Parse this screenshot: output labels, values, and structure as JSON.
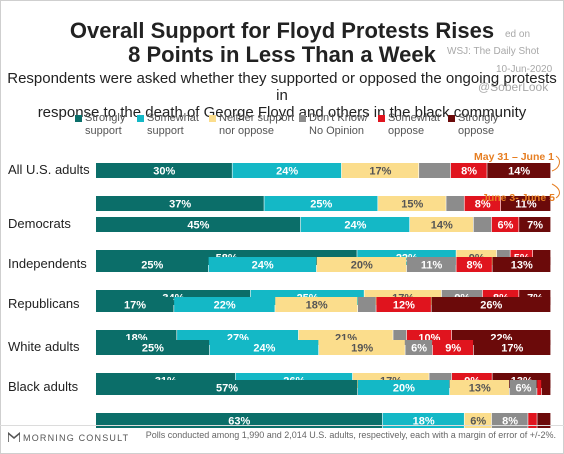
{
  "chart_data": {
    "type": "bar",
    "stacked": "horizontal-100",
    "title": "Overall Support for Floyd Protests Rises 8 Points in Less Than a Week",
    "title_lines": [
      "Overall Support for Floyd Protests Rises",
      "8 Points in Less Than a Week"
    ],
    "subtitle": "Respondents were asked whether they supported or opposed the ongoing protests in response to the death of George Floyd and others in the black community",
    "subtitle_lines": [
      "Respondents were asked whether they supported or opposed the ongoing protests in",
      "response to the death of George Floyd and others in the black community"
    ],
    "legend_position": "top",
    "legend": [
      {
        "line1": "Strongly",
        "line2": "support",
        "color": "#0b6e69"
      },
      {
        "line1": "Somewhat",
        "line2": "support",
        "color": "#14b8c6"
      },
      {
        "line1": "Neither support",
        "line2": "nor oppose",
        "color": "#fbdd8c"
      },
      {
        "line1": "Don't Know/",
        "line2": "No Opinion",
        "color": "#8c8c8c"
      },
      {
        "line1": "Somewhat",
        "line2": "oppose",
        "color": "#e0141e"
      },
      {
        "line1": "Strongly",
        "line2": "oppose",
        "color": "#6b0a0a"
      }
    ],
    "annotations": {
      "first": "May 31 – June 1",
      "second": "June 3- June 5"
    },
    "groups": [
      {
        "name": "All U.S. adults",
        "rows": [
          {
            "values": [
              30,
              24,
              17,
              7,
              8,
              14
            ],
            "labels": [
              "30%",
              "24%",
              "17%",
              "",
              "8%",
              "14%"
            ]
          },
          {
            "values": [
              37,
              25,
              15,
              4,
              8,
              11
            ],
            "labels": [
              "37%",
              "25%",
              "15%",
              "",
              "8%",
              "11%"
            ]
          }
        ]
      },
      {
        "name": "Democrats",
        "rows": [
          {
            "values": [
              45,
              24,
              14,
              4,
              6,
              7
            ],
            "labels": [
              "45%",
              "24%",
              "14%",
              "",
              "6%",
              "7%"
            ]
          },
          {
            "values": [
              58,
              22,
              9,
              3,
              5,
              4
            ],
            "labels": [
              "58%",
              "22%",
              "9%",
              "",
              "5%",
              ""
            ]
          }
        ]
      },
      {
        "name": "Independents",
        "rows": [
          {
            "values": [
              25,
              24,
              20,
              11,
              8,
              13
            ],
            "labels": [
              "25%",
              "24%",
              "20%",
              "11%",
              "8%",
              "13%"
            ]
          },
          {
            "values": [
              34,
              25,
              17,
              9,
              8,
              7
            ],
            "labels": [
              "34%",
              "25%",
              "17%",
              "9%",
              "8%",
              "7%"
            ]
          }
        ]
      },
      {
        "name": "Republicans",
        "rows": [
          {
            "values": [
              17,
              22,
              18,
              4,
              12,
              26
            ],
            "labels": [
              "17%",
              "22%",
              "18%",
              "",
              "12%",
              "26%"
            ]
          },
          {
            "values": [
              18,
              27,
              21,
              3,
              10,
              22
            ],
            "labels": [
              "18%",
              "27%",
              "21%",
              "",
              "10%",
              "22%"
            ]
          }
        ]
      },
      {
        "name": "White adults",
        "rows": [
          {
            "values": [
              25,
              24,
              19,
              6,
              9,
              17
            ],
            "labels": [
              "25%",
              "24%",
              "19%",
              "6%",
              "9%",
              "17%"
            ]
          },
          {
            "values": [
              31,
              26,
              17,
              5,
              9,
              13
            ],
            "labels": [
              "31%",
              "26%",
              "17%",
              "",
              "9%",
              "13%"
            ]
          }
        ]
      },
      {
        "name": "Black adults",
        "rows": [
          {
            "values": [
              57,
              20,
              13,
              6,
              1,
              2
            ],
            "labels": [
              "57%",
              "20%",
              "13%",
              "6%",
              "",
              ""
            ]
          },
          {
            "values": [
              63,
              18,
              6,
              8,
              2,
              3
            ],
            "labels": [
              "63%",
              "18%",
              "6%",
              "8%",
              "",
              ""
            ]
          }
        ]
      }
    ],
    "footnote": "Polls conducted among 1,990 and 2,014 U.S. adults, respectively, each with a margin of error of +/-2%."
  },
  "watermark": {
    "line1": "ed on",
    "line2": "WSJ: The Daily Shot",
    "line3": "10-Jun-2020",
    "line4": "@SoberLook"
  },
  "branding": {
    "logo_text": "MORNING CONSULT"
  }
}
